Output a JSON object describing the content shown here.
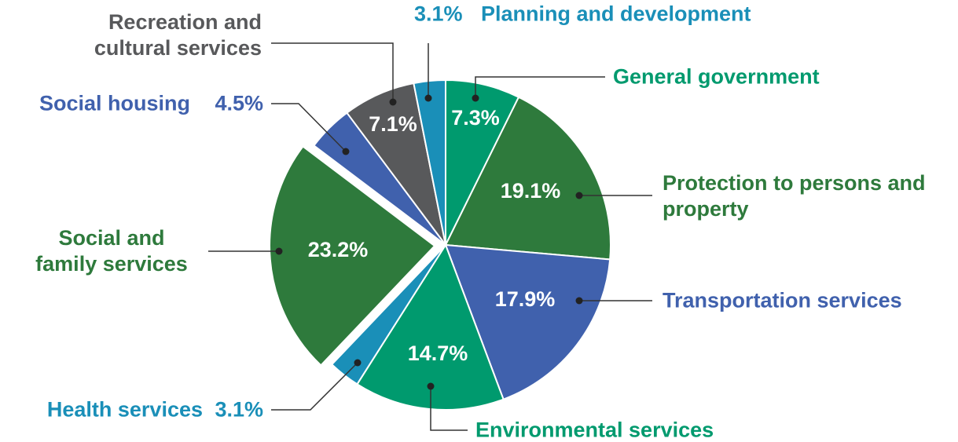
{
  "chart_data": {
    "type": "pie",
    "categories": [
      "General government",
      "Protection to persons and property",
      "Transportation services",
      "Environmental services",
      "Health services",
      "Social and family services",
      "Social housing",
      "Recreation and cultural services",
      "Planning and development"
    ],
    "values": [
      7.3,
      19.1,
      17.9,
      14.7,
      3.1,
      23.2,
      4.5,
      7.1,
      3.1
    ],
    "value_labels": [
      "7.3%",
      "19.1%",
      "17.9%",
      "14.7%",
      "3.1%",
      "23.2%",
      "4.5%",
      "7.1%",
      "3.1%"
    ],
    "colors": [
      "#009a6e",
      "#2e7a3c",
      "#4061ad",
      "#009a6e",
      "#1a8fb8",
      "#2e7a3c",
      "#4061ad",
      "#58595b",
      "#1a8fb8"
    ],
    "exploded": "Social and family services"
  }
}
